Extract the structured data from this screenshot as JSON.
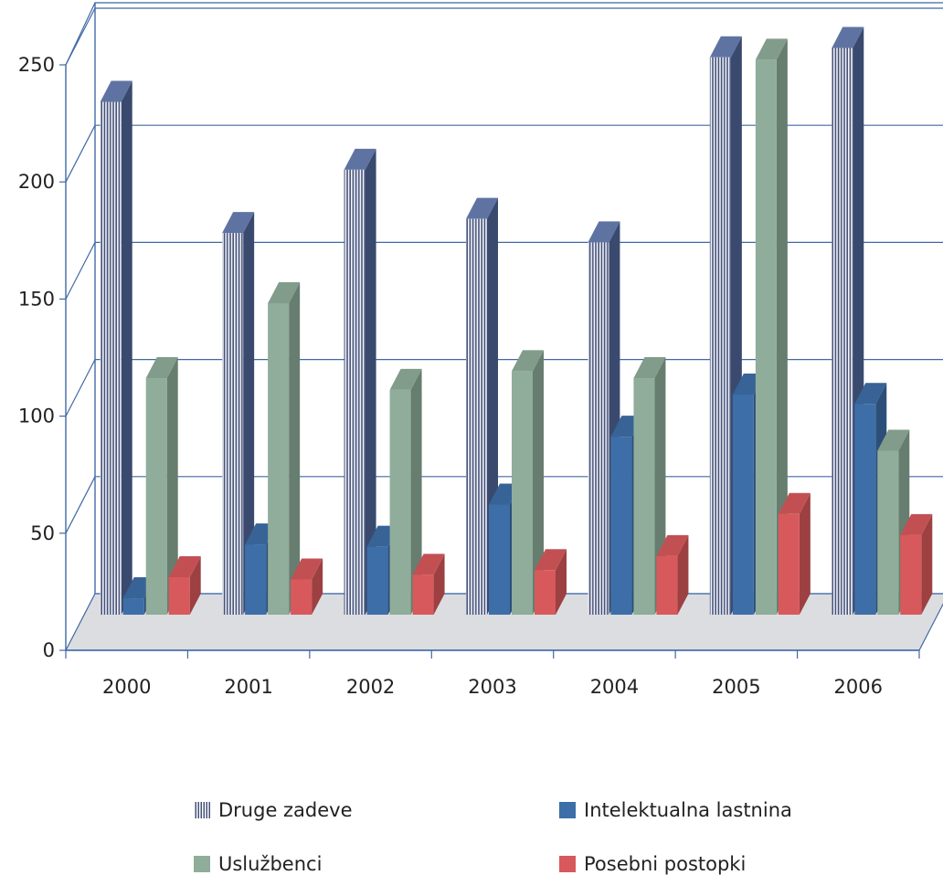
{
  "chart_data": {
    "type": "bar",
    "categories": [
      "2000",
      "2001",
      "2002",
      "2003",
      "2004",
      "2005",
      "2006"
    ],
    "y_ticks": [
      "0",
      "50",
      "100",
      "150",
      "200",
      "250"
    ],
    "ylim": [
      0,
      250
    ],
    "grid": true,
    "legend_position": "bottom",
    "series": [
      {
        "name": "Druge zadeve",
        "values": [
          219,
          163,
          190,
          169,
          159,
          238,
          242
        ],
        "color": "#7d8fb2",
        "pattern": "vertical-stripes"
      },
      {
        "name": "Intelektualna lastnina",
        "values": [
          7,
          30,
          29,
          47,
          76,
          94,
          90
        ],
        "color": "#3d6ea8"
      },
      {
        "name": "Uslužbenci",
        "values": [
          101,
          133,
          96,
          104,
          101,
          237,
          70
        ],
        "color": "#8fad9a"
      },
      {
        "name": "Posebni postopki",
        "values": [
          16,
          15,
          17,
          19,
          25,
          43,
          34
        ],
        "color": "#d8595c"
      }
    ]
  }
}
